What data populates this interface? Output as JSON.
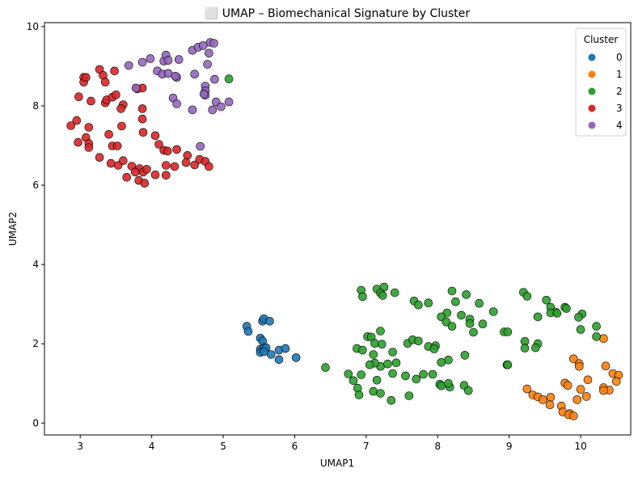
{
  "chart_data": {
    "type": "scatter",
    "title": "⬜ UMAP – Biomechanical Signature by Cluster",
    "xlabel": "UMAP1",
    "ylabel": "UMAP2",
    "xlim": [
      2.5,
      10.7
    ],
    "ylim": [
      -0.3,
      10.1
    ],
    "xticks": [
      3,
      4,
      5,
      6,
      7,
      8,
      9,
      10
    ],
    "yticks": [
      0,
      2,
      4,
      6,
      8,
      10
    ],
    "grid": false,
    "legend": {
      "title": "Cluster",
      "placement": "top-right"
    },
    "series": [
      {
        "name": "0",
        "color": "#1f77b4",
        "points": [
          [
            5.33,
            2.44
          ],
          [
            5.35,
            2.31
          ],
          [
            5.55,
            2.57
          ],
          [
            5.57,
            2.63
          ],
          [
            5.65,
            2.57
          ],
          [
            5.52,
            2.14
          ],
          [
            5.55,
            2.07
          ],
          [
            5.52,
            1.86
          ],
          [
            5.57,
            1.9
          ],
          [
            5.6,
            1.9
          ],
          [
            5.52,
            1.78
          ],
          [
            5.57,
            1.8
          ],
          [
            5.67,
            1.73
          ],
          [
            5.78,
            1.84
          ],
          [
            5.87,
            1.88
          ],
          [
            5.78,
            1.6
          ],
          [
            6.02,
            1.65
          ]
        ]
      },
      {
        "name": "1",
        "color": "#ff7f0e",
        "points": [
          [
            10.32,
            2.13
          ],
          [
            9.9,
            1.62
          ],
          [
            9.98,
            1.5
          ],
          [
            9.98,
            1.43
          ],
          [
            10.35,
            1.44
          ],
          [
            10.45,
            1.25
          ],
          [
            10.53,
            1.21
          ],
          [
            10.1,
            1.09
          ],
          [
            10.5,
            1.05
          ],
          [
            9.78,
            1.01
          ],
          [
            9.82,
            0.95
          ],
          [
            10.0,
            0.85
          ],
          [
            10.32,
            0.89
          ],
          [
            10.4,
            0.83
          ],
          [
            10.32,
            0.82
          ],
          [
            9.25,
            0.86
          ],
          [
            9.33,
            0.71
          ],
          [
            9.4,
            0.66
          ],
          [
            9.47,
            0.59
          ],
          [
            9.58,
            0.65
          ],
          [
            9.57,
            0.46
          ],
          [
            9.95,
            0.59
          ],
          [
            10.08,
            0.67
          ],
          [
            9.73,
            0.43
          ],
          [
            9.75,
            0.28
          ],
          [
            9.85,
            0.24
          ],
          [
            9.83,
            0.21
          ],
          [
            9.9,
            0.18
          ]
        ]
      },
      {
        "name": "2",
        "color": "#2ca02c",
        "points": [
          [
            5.08,
            8.68
          ],
          [
            6.93,
            3.35
          ],
          [
            6.95,
            3.19
          ],
          [
            7.15,
            3.38
          ],
          [
            7.25,
            3.43
          ],
          [
            7.2,
            3.28
          ],
          [
            7.23,
            3.22
          ],
          [
            7.4,
            3.29
          ],
          [
            7.67,
            3.08
          ],
          [
            7.73,
            2.98
          ],
          [
            7.87,
            3.03
          ],
          [
            8.2,
            3.33
          ],
          [
            8.25,
            3.06
          ],
          [
            8.4,
            3.24
          ],
          [
            8.58,
            3.02
          ],
          [
            8.78,
            2.81
          ],
          [
            9.2,
            3.3
          ],
          [
            9.25,
            3.2
          ],
          [
            9.52,
            3.1
          ],
          [
            9.58,
            2.92
          ],
          [
            9.65,
            2.8
          ],
          [
            9.78,
            2.92
          ],
          [
            9.8,
            2.89
          ],
          [
            9.4,
            2.68
          ],
          [
            9.58,
            2.78
          ],
          [
            9.67,
            2.77
          ],
          [
            10.02,
            2.75
          ],
          [
            9.97,
            2.67
          ],
          [
            8.13,
            2.78
          ],
          [
            8.05,
            2.68
          ],
          [
            8.12,
            2.55
          ],
          [
            8.2,
            2.44
          ],
          [
            8.33,
            2.72
          ],
          [
            8.45,
            2.62
          ],
          [
            8.45,
            2.51
          ],
          [
            8.63,
            2.5
          ],
          [
            8.5,
            2.29
          ],
          [
            8.93,
            2.3
          ],
          [
            8.98,
            2.3
          ],
          [
            9.22,
            2.06
          ],
          [
            10.22,
            2.44
          ],
          [
            10.22,
            2.18
          ],
          [
            10.0,
            2.36
          ],
          [
            9.4,
            2.0
          ],
          [
            9.37,
            1.9
          ],
          [
            9.22,
            1.89
          ],
          [
            8.97,
            1.47
          ],
          [
            8.98,
            1.47
          ],
          [
            7.02,
            2.18
          ],
          [
            7.07,
            2.17
          ],
          [
            7.2,
            2.32
          ],
          [
            7.12,
            2.01
          ],
          [
            7.22,
            1.99
          ],
          [
            7.37,
            1.79
          ],
          [
            7.58,
            2.01
          ],
          [
            7.65,
            2.1
          ],
          [
            7.73,
            2.07
          ],
          [
            7.87,
            1.93
          ],
          [
            7.97,
            1.95
          ],
          [
            7.95,
            1.87
          ],
          [
            8.15,
            1.59
          ],
          [
            8.38,
            1.71
          ],
          [
            6.87,
            1.88
          ],
          [
            6.95,
            1.84
          ],
          [
            7.1,
            1.73
          ],
          [
            7.2,
            1.43
          ],
          [
            7.3,
            1.49
          ],
          [
            7.42,
            1.52
          ],
          [
            7.12,
            1.51
          ],
          [
            7.05,
            1.47
          ],
          [
            8.05,
            1.53
          ],
          [
            7.37,
            1.25
          ],
          [
            7.55,
            1.19
          ],
          [
            7.7,
            1.11
          ],
          [
            7.8,
            1.23
          ],
          [
            7.93,
            1.23
          ],
          [
            8.03,
            0.98
          ],
          [
            8.05,
            0.94
          ],
          [
            8.17,
            0.91
          ],
          [
            8.15,
            1.0
          ],
          [
            8.37,
            0.95
          ],
          [
            8.43,
            0.82
          ],
          [
            6.43,
            1.4
          ],
          [
            6.75,
            1.24
          ],
          [
            6.82,
            1.07
          ],
          [
            6.88,
            0.88
          ],
          [
            6.9,
            0.71
          ],
          [
            6.93,
            1.22
          ],
          [
            7.15,
            1.08
          ],
          [
            7.1,
            0.8
          ],
          [
            7.2,
            0.75
          ],
          [
            7.35,
            0.57
          ],
          [
            7.6,
            0.69
          ]
        ]
      },
      {
        "name": "3",
        "color": "#d62728",
        "points": [
          [
            3.05,
            8.72
          ],
          [
            3.05,
            8.6
          ],
          [
            3.08,
            8.72
          ],
          [
            3.27,
            8.92
          ],
          [
            3.32,
            8.77
          ],
          [
            3.35,
            8.6
          ],
          [
            3.48,
            8.88
          ],
          [
            2.98,
            8.23
          ],
          [
            3.15,
            8.12
          ],
          [
            3.35,
            8.08
          ],
          [
            3.37,
            8.15
          ],
          [
            3.45,
            8.22
          ],
          [
            3.5,
            8.28
          ],
          [
            3.6,
            8.03
          ],
          [
            3.57,
            7.93
          ],
          [
            3.8,
            8.43
          ],
          [
            3.87,
            8.45
          ],
          [
            3.87,
            7.93
          ],
          [
            3.87,
            7.67
          ],
          [
            2.95,
            7.63
          ],
          [
            2.87,
            7.5
          ],
          [
            3.12,
            7.46
          ],
          [
            3.08,
            7.2
          ],
          [
            2.97,
            7.08
          ],
          [
            3.12,
            7.05
          ],
          [
            3.12,
            6.95
          ],
          [
            3.4,
            7.28
          ],
          [
            3.58,
            7.49
          ],
          [
            3.88,
            7.33
          ],
          [
            4.05,
            7.25
          ],
          [
            3.45,
            6.99
          ],
          [
            3.52,
            6.99
          ],
          [
            4.1,
            7.03
          ],
          [
            4.17,
            6.88
          ],
          [
            4.22,
            6.86
          ],
          [
            4.35,
            6.9
          ],
          [
            4.5,
            6.75
          ],
          [
            3.27,
            6.7
          ],
          [
            3.43,
            6.55
          ],
          [
            3.53,
            6.5
          ],
          [
            3.6,
            6.62
          ],
          [
            3.72,
            6.48
          ],
          [
            3.83,
            6.42
          ],
          [
            3.88,
            6.33
          ],
          [
            3.77,
            6.33
          ],
          [
            3.93,
            6.4
          ],
          [
            4.2,
            6.5
          ],
          [
            4.32,
            6.47
          ],
          [
            4.48,
            6.57
          ],
          [
            4.6,
            6.51
          ],
          [
            4.67,
            6.65
          ],
          [
            4.75,
            6.6
          ],
          [
            4.8,
            6.47
          ],
          [
            3.65,
            6.2
          ],
          [
            3.82,
            6.12
          ],
          [
            3.9,
            6.05
          ],
          [
            4.05,
            6.26
          ],
          [
            4.2,
            6.25
          ]
        ]
      },
      {
        "name": "4",
        "color": "#9467bd",
        "points": [
          [
            3.68,
            9.02
          ],
          [
            3.87,
            9.1
          ],
          [
            3.98,
            9.19
          ],
          [
            4.17,
            9.13
          ],
          [
            4.2,
            9.28
          ],
          [
            4.23,
            9.15
          ],
          [
            4.38,
            9.17
          ],
          [
            4.57,
            9.4
          ],
          [
            4.65,
            9.48
          ],
          [
            4.72,
            9.52
          ],
          [
            4.82,
            9.6
          ],
          [
            4.87,
            9.58
          ],
          [
            4.8,
            9.33
          ],
          [
            4.78,
            9.05
          ],
          [
            4.08,
            8.88
          ],
          [
            4.15,
            8.8
          ],
          [
            4.23,
            8.82
          ],
          [
            4.35,
            8.72
          ],
          [
            4.33,
            8.75
          ],
          [
            4.6,
            8.8
          ],
          [
            4.75,
            8.5
          ],
          [
            4.75,
            8.38
          ],
          [
            4.88,
            8.67
          ],
          [
            3.78,
            8.45
          ],
          [
            4.3,
            8.2
          ],
          [
            4.35,
            8.05
          ],
          [
            4.75,
            8.27
          ],
          [
            4.73,
            8.3
          ],
          [
            4.9,
            8.1
          ],
          [
            4.97,
            7.98
          ],
          [
            5.08,
            8.1
          ],
          [
            4.85,
            7.9
          ],
          [
            4.57,
            7.9
          ],
          [
            4.68,
            6.98
          ]
        ]
      }
    ]
  }
}
